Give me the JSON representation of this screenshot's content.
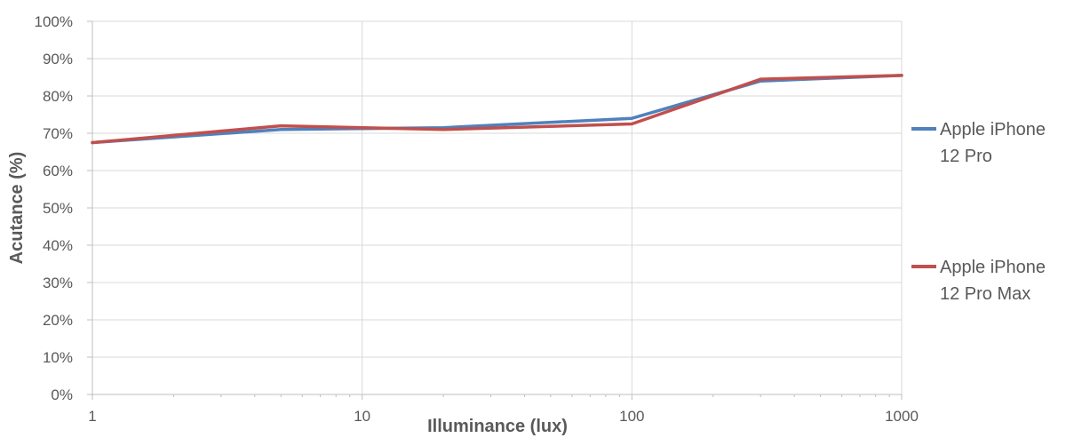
{
  "chart_data": {
    "type": "line",
    "x_scale": "log",
    "xlabel": "Illuminance (lux)",
    "ylabel": "Acutance (%)",
    "xlim": [
      1,
      1000
    ],
    "ylim": [
      0,
      100
    ],
    "x_ticks": [
      {
        "value": 1,
        "label": "1"
      },
      {
        "value": 10,
        "label": "10"
      },
      {
        "value": 100,
        "label": "100"
      },
      {
        "value": 1000,
        "label": "1000"
      }
    ],
    "y_ticks": [
      {
        "value": 0,
        "label": "0%"
      },
      {
        "value": 10,
        "label": "10%"
      },
      {
        "value": 20,
        "label": "20%"
      },
      {
        "value": 30,
        "label": "30%"
      },
      {
        "value": 40,
        "label": "40%"
      },
      {
        "value": 50,
        "label": "50%"
      },
      {
        "value": 60,
        "label": "60%"
      },
      {
        "value": 70,
        "label": "70%"
      },
      {
        "value": 80,
        "label": "80%"
      },
      {
        "value": 90,
        "label": "90%"
      },
      {
        "value": 100,
        "label": "100%"
      }
    ],
    "grid": true,
    "legend_position": "right",
    "series": [
      {
        "name": "Apple iPhone 12 Pro",
        "color": "#4f81bd",
        "x": [
          1,
          5,
          20,
          100,
          300,
          1000
        ],
        "y": [
          67.5,
          71.0,
          71.5,
          74.0,
          84.0,
          85.5
        ]
      },
      {
        "name": "Apple iPhone 12 Pro Max",
        "color": "#c0504d",
        "x": [
          1,
          5,
          20,
          100,
          300,
          1000
        ],
        "y": [
          67.5,
          72.0,
          71.0,
          72.5,
          84.5,
          85.5
        ]
      }
    ]
  }
}
